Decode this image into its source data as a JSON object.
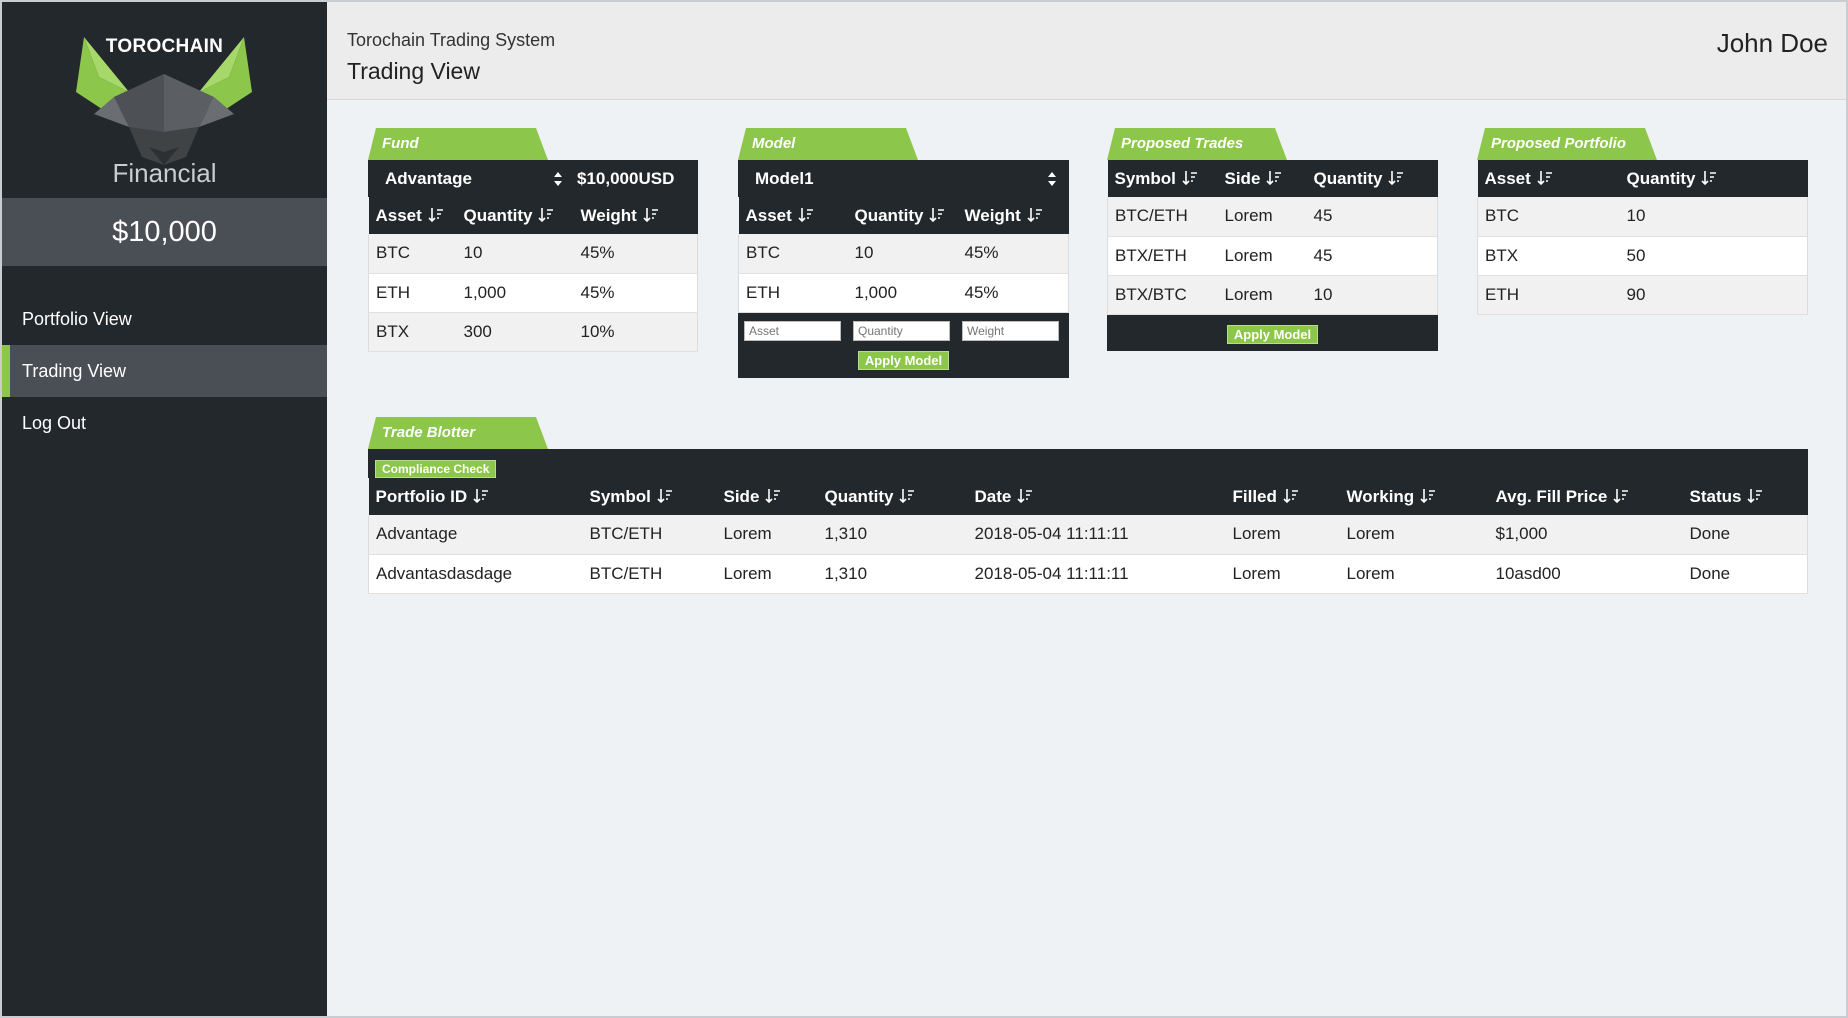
{
  "sidebar": {
    "brand": "TOROCHAIN",
    "brand_sub": "Financial",
    "balance": "$10,000",
    "nav": [
      {
        "label": "Portfolio View"
      },
      {
        "label": "Trading View"
      },
      {
        "label": "Log Out"
      }
    ]
  },
  "header": {
    "subtitle": "Torochain Trading System",
    "title": "Trading View",
    "user": "John Doe"
  },
  "colors": {
    "accent": "#8cc64a",
    "dark": "#22282c",
    "active_nav": "#4a4f55"
  },
  "icons": {
    "sort": "sort-desc-icon",
    "select": "select-arrows-icon"
  },
  "fund": {
    "tab": "Fund",
    "selected": "Advantage",
    "amount": "$10,000USD",
    "headers": [
      "Asset",
      "Quantity",
      "Weight"
    ],
    "rows": [
      [
        "BTC",
        "10",
        "45%"
      ],
      [
        "ETH",
        "1,000",
        "45%"
      ],
      [
        "BTX",
        "300",
        "10%"
      ]
    ]
  },
  "model": {
    "tab": "Model",
    "selected": "Model1",
    "headers": [
      "Asset",
      "Quantity",
      "Weight"
    ],
    "rows": [
      [
        "BTC",
        "10",
        "45%"
      ],
      [
        "ETH",
        "1,000",
        "45%"
      ]
    ],
    "inputs": {
      "asset_placeholder": "Asset",
      "quantity_placeholder": "Quantity",
      "weight_placeholder": "Weight"
    },
    "apply_label": "Apply Model"
  },
  "proposed_trades": {
    "tab": "Proposed Trades",
    "headers": [
      "Symbol",
      "Side",
      "Quantity"
    ],
    "rows": [
      [
        "BTC/ETH",
        "Lorem",
        "45"
      ],
      [
        "BTX/ETH",
        "Lorem",
        "45"
      ],
      [
        "BTX/BTC",
        "Lorem",
        "10"
      ]
    ],
    "apply_label": "Apply Model"
  },
  "proposed_portfolio": {
    "tab": "Proposed Portfolio",
    "headers": [
      "Asset",
      "Quantity"
    ],
    "rows": [
      [
        "BTC",
        "10"
      ],
      [
        "BTX",
        "50"
      ],
      [
        "ETH",
        "90"
      ]
    ]
  },
  "blotter": {
    "tab": "Trade Blotter",
    "compliance_label": "Compliance Check",
    "headers": [
      "Portfolio ID",
      "Symbol",
      "Side",
      "Quantity",
      "Date",
      "Filled",
      "Working",
      "Avg. Fill Price",
      "Status"
    ],
    "rows": [
      [
        "Advantage",
        "BTC/ETH",
        "Lorem",
        "1,310",
        "2018-05-04 11:11:11",
        "Lorem",
        "Lorem",
        "$1,000",
        "Done"
      ],
      [
        "Advantasdasdage",
        "BTC/ETH",
        "Lorem",
        "1,310",
        "2018-05-04 11:11:11",
        "Lorem",
        "Lorem",
        "10asd00",
        "Done"
      ]
    ]
  }
}
